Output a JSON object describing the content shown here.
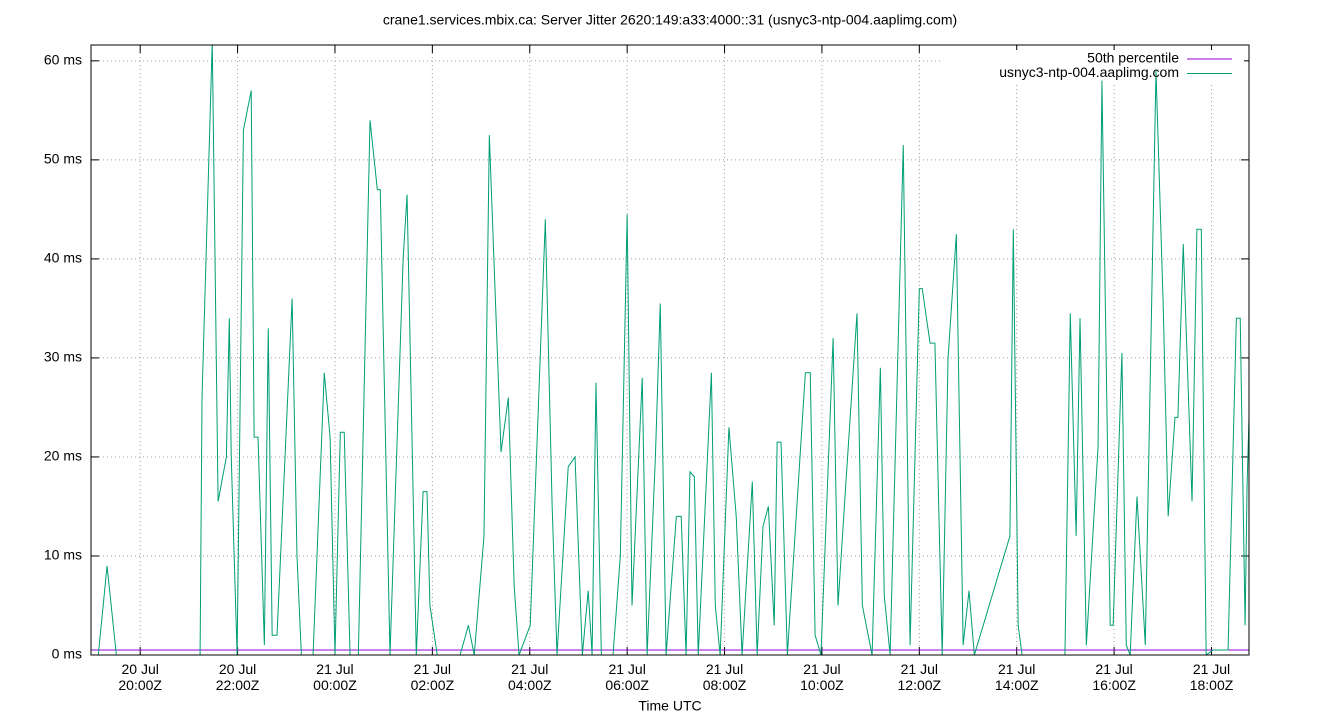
{
  "chart_data": {
    "type": "line",
    "title": "crane1.services.mbix.ca: Server Jitter 2620:149:a33:4000::31 (usnyc3-ntp-004.aaplimg.com)",
    "x_label": "Time UTC",
    "xlim": [
      18.99,
      42.77
    ],
    "ylim": [
      0,
      61.6
    ],
    "xticks": [
      {
        "value": 20,
        "label": "20 Jul\n20:00Z"
      },
      {
        "value": 22,
        "label": "20 Jul\n22:00Z"
      },
      {
        "value": 24,
        "label": "21 Jul\n00:00Z"
      },
      {
        "value": 26,
        "label": "21 Jul\n02:00Z"
      },
      {
        "value": 28,
        "label": "21 Jul\n04:00Z"
      },
      {
        "value": 30,
        "label": "21 Jul\n06:00Z"
      },
      {
        "value": 32,
        "label": "21 Jul\n08:00Z"
      },
      {
        "value": 34,
        "label": "21 Jul\n10:00Z"
      },
      {
        "value": 36,
        "label": "21 Jul\n12:00Z"
      },
      {
        "value": 38,
        "label": "21 Jul\n14:00Z"
      },
      {
        "value": 40,
        "label": "21 Jul\n16:00Z"
      },
      {
        "value": 42,
        "label": "21 Jul\n18:00Z"
      }
    ],
    "yticks": [
      {
        "value": 0,
        "label": "0 ms"
      },
      {
        "value": 10,
        "label": "10 ms"
      },
      {
        "value": 20,
        "label": "20 ms"
      },
      {
        "value": 30,
        "label": "30 ms"
      },
      {
        "value": 40,
        "label": "40 ms"
      },
      {
        "value": 50,
        "label": "50 ms"
      },
      {
        "value": 60,
        "label": "60 ms"
      }
    ],
    "grid": true,
    "legend": "top-right",
    "series": [
      {
        "name": "50th percentile",
        "color": "#9400d3",
        "x": [
          18.99,
          42.77
        ],
        "values": [
          0.5,
          0.5
        ]
      },
      {
        "name": "usnyc3-ntp-004.aaplimg.com",
        "color": "#009e73",
        "x": [
          19.14,
          19.32,
          19.51,
          21.23,
          21.27,
          21.48,
          21.6,
          21.77,
          21.83,
          21.87,
          21.99,
          22.12,
          22.28,
          22.34,
          22.42,
          22.55,
          22.63,
          22.71,
          22.81,
          23.12,
          23.22,
          23.31,
          23.55,
          23.78,
          23.9,
          24.0,
          24.11,
          24.19,
          24.31,
          24.48,
          24.72,
          24.87,
          24.93,
          25.13,
          25.4,
          25.48,
          25.59,
          25.67,
          25.81,
          25.89,
          25.95,
          26.1,
          26.57,
          26.74,
          26.86,
          27.06,
          27.17,
          27.41,
          27.56,
          27.68,
          27.78,
          28.01,
          28.32,
          28.46,
          28.56,
          28.79,
          28.93,
          29.08,
          29.2,
          29.28,
          29.36,
          29.47,
          29.71,
          29.86,
          30.0,
          30.1,
          30.31,
          30.41,
          30.58,
          30.68,
          30.8,
          31.01,
          31.11,
          31.21,
          31.29,
          31.38,
          31.46,
          31.73,
          31.81,
          31.91,
          32.09,
          32.24,
          32.36,
          32.57,
          32.67,
          32.79,
          32.9,
          33.02,
          33.08,
          33.16,
          33.29,
          33.66,
          33.76,
          33.86,
          33.98,
          34.23,
          34.33,
          34.54,
          34.72,
          34.83,
          35.03,
          35.2,
          35.28,
          35.4,
          35.67,
          35.81,
          36.0,
          36.06,
          36.22,
          36.32,
          36.47,
          36.59,
          36.76,
          36.9,
          37.02,
          37.13,
          37.86,
          37.93,
          38.03,
          38.11,
          38.85,
          38.99,
          39.1,
          39.22,
          39.3,
          39.43,
          39.67,
          39.75,
          39.92,
          39.98,
          40.16,
          40.25,
          40.33,
          40.47,
          40.64,
          40.86,
          41.01,
          41.11,
          41.25,
          41.31,
          41.42,
          41.6,
          41.7,
          41.79,
          41.89,
          42.03,
          42.34,
          42.51,
          42.59,
          42.69,
          42.73,
          42.77
        ],
        "values": [
          0,
          9,
          0,
          0,
          26,
          62,
          15.5,
          20,
          34,
          20,
          0,
          53,
          57,
          22,
          22,
          1,
          33,
          2,
          2,
          36,
          10,
          0,
          0,
          28.5,
          22,
          0,
          22.5,
          22.5,
          0,
          0,
          54,
          47,
          47,
          0,
          40,
          46.5,
          20,
          0,
          16.5,
          16.5,
          5,
          0,
          0,
          3,
          0,
          12,
          52.5,
          20.5,
          26,
          7,
          0,
          3,
          44,
          15,
          0,
          19,
          20,
          0,
          6.5,
          0,
          27.5,
          0,
          0,
          10,
          44.5,
          5,
          28,
          0,
          20,
          35.5,
          0,
          14,
          14,
          0,
          18.5,
          18,
          0,
          28.5,
          5,
          0,
          23,
          14,
          0,
          17.5,
          0,
          13,
          15,
          3,
          21.5,
          21.5,
          0,
          28.5,
          28.5,
          2,
          0,
          32,
          5,
          21,
          34.5,
          5,
          0,
          29,
          6,
          0,
          51.5,
          1,
          37,
          37,
          31.5,
          31.5,
          0,
          30,
          42.5,
          1,
          6.5,
          0,
          12,
          43,
          3,
          0,
          0,
          0,
          34.5,
          12,
          34,
          1,
          21,
          58,
          3,
          3,
          30.5,
          1,
          0,
          16,
          1,
          59,
          35,
          14,
          24,
          24,
          41.5,
          15.5,
          43,
          43,
          0,
          0.5,
          0.5,
          34,
          34,
          3,
          17,
          24
        ]
      }
    ]
  }
}
